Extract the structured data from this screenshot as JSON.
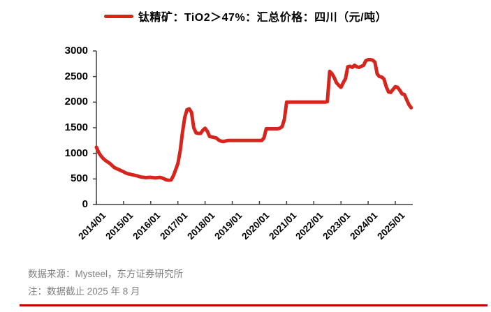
{
  "legend": {
    "label": "钛精矿：TiO2＞47%：汇总价格：四川（元/吨）"
  },
  "colors": {
    "series_red": "#D6251D",
    "divider_red": "#C40000",
    "axis": "#3f3f3f",
    "footer_gray": "#808080"
  },
  "chart_data": {
    "type": "line",
    "title": "钛精矿：TiO2＞47%：汇总价格：四川（元/吨）",
    "xlabel": "",
    "ylabel": "",
    "ylim": [
      0,
      3000
    ],
    "yticks": [
      0,
      500,
      1000,
      1500,
      2000,
      2500,
      3000
    ],
    "xticks": [
      "2014/01",
      "2015/01",
      "2016/01",
      "2017/01",
      "2018/01",
      "2019/01",
      "2020/01",
      "2021/01",
      "2022/01",
      "2023/01",
      "2024/01",
      "2025/01"
    ],
    "grid": false,
    "legend_position": "top",
    "series": [
      {
        "name": "钛精矿：TiO2＞47%：汇总价格：四川（元/吨）",
        "unit": "元/吨",
        "start": "2014/01",
        "end": "2025/08",
        "interval": "monthly",
        "values": [
          1120,
          1020,
          950,
          900,
          860,
          830,
          800,
          760,
          720,
          700,
          680,
          660,
          640,
          615,
          600,
          590,
          580,
          570,
          560,
          545,
          535,
          530,
          525,
          530,
          530,
          525,
          520,
          525,
          530,
          520,
          500,
          480,
          475,
          480,
          560,
          680,
          800,
          1050,
          1400,
          1700,
          1850,
          1870,
          1800,
          1500,
          1400,
          1390,
          1390,
          1450,
          1490,
          1430,
          1330,
          1320,
          1310,
          1300,
          1260,
          1240,
          1230,
          1240,
          1250,
          1250,
          1250,
          1250,
          1250,
          1250,
          1250,
          1250,
          1250,
          1250,
          1250,
          1250,
          1250,
          1250,
          1250,
          1250,
          1300,
          1480,
          1480,
          1480,
          1480,
          1480,
          1480,
          1490,
          1520,
          1660,
          2000,
          2000,
          2000,
          2000,
          2000,
          2000,
          2000,
          2000,
          2000,
          2000,
          2000,
          2000,
          2000,
          2000,
          2000,
          2000,
          2000,
          2000,
          2010,
          2600,
          2560,
          2480,
          2380,
          2330,
          2290,
          2380,
          2460,
          2690,
          2700,
          2680,
          2720,
          2690,
          2680,
          2700,
          2720,
          2810,
          2830,
          2830,
          2820,
          2780,
          2550,
          2500,
          2490,
          2450,
          2300,
          2200,
          2190,
          2250,
          2300,
          2290,
          2230,
          2160,
          2150,
          2050,
          1950,
          1890
        ]
      }
    ]
  },
  "footer": {
    "source": "数据来源：Mysteel，东方证券研究所",
    "note": "注：数据截止 2025 年 8 月"
  }
}
